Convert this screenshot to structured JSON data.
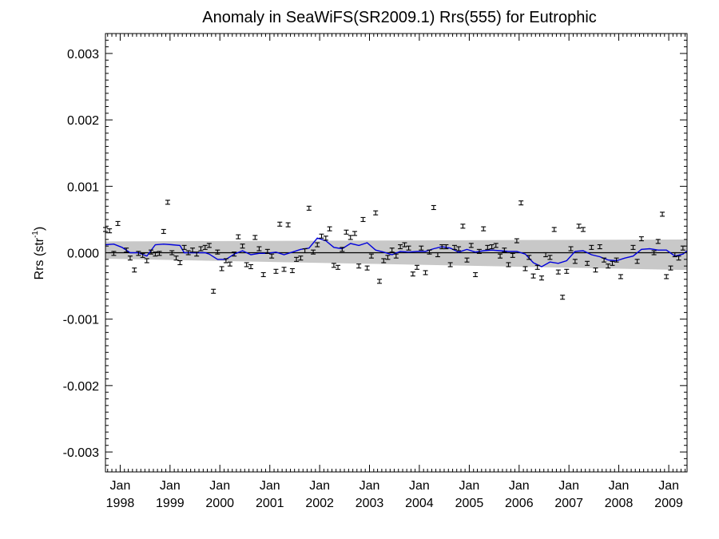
{
  "chart_data": {
    "type": "scatter",
    "title": "Anomaly in SeaWiFS(SR2009.1) Rrs(555) for Eutrophic",
    "ylabel": "Rrs (str",
    "ylabel_superscript": "-1",
    "ylabel_suffix": ")",
    "xlabel": "",
    "xlim": [
      "1997-09-15",
      "2009-05-15"
    ],
    "ylim": [
      -0.0033,
      0.0033
    ],
    "y_ticks": [
      {
        "value": -0.003,
        "label": "-0.003"
      },
      {
        "value": -0.002,
        "label": "-0.002"
      },
      {
        "value": -0.001,
        "label": "-0.001"
      },
      {
        "value": 0.0,
        "label": "0.000"
      },
      {
        "value": 0.001,
        "label": "0.001"
      },
      {
        "value": 0.002,
        "label": "0.002"
      },
      {
        "value": 0.003,
        "label": "0.003"
      }
    ],
    "x_ticks": [
      {
        "date": "1998-01-01",
        "label_top": "Jan",
        "label_bottom": "1998"
      },
      {
        "date": "1999-01-01",
        "label_top": "Jan",
        "label_bottom": "1999"
      },
      {
        "date": "2000-01-01",
        "label_top": "Jan",
        "label_bottom": "2000"
      },
      {
        "date": "2001-01-01",
        "label_top": "Jan",
        "label_bottom": "2001"
      },
      {
        "date": "2002-01-01",
        "label_top": "Jan",
        "label_bottom": "2002"
      },
      {
        "date": "2003-01-01",
        "label_top": "Jan",
        "label_bottom": "2003"
      },
      {
        "date": "2004-01-01",
        "label_top": "Jan",
        "label_bottom": "2004"
      },
      {
        "date": "2005-01-01",
        "label_top": "Jan",
        "label_bottom": "2005"
      },
      {
        "date": "2006-01-01",
        "label_top": "Jan",
        "label_bottom": "2006"
      },
      {
        "date": "2007-01-01",
        "label_top": "Jan",
        "label_bottom": "2007"
      },
      {
        "date": "2008-01-01",
        "label_top": "Jan",
        "label_bottom": "2008"
      },
      {
        "date": "2009-01-01",
        "label_top": "Jan",
        "label_bottom": "2009"
      }
    ],
    "zero_line": 0.0,
    "band": {
      "color": "#c8c8c8",
      "start": {
        "date": "1997-09-15",
        "upper": 0.00017,
        "lower": -9e-05
      },
      "end": {
        "date": "2009-05-15",
        "upper": 0.0002,
        "lower": -0.00026
      }
    },
    "series": [
      {
        "role": "monthly anomaly points",
        "color": "#000000",
        "marker": "error-bar",
        "points": [
          [
            "1997-09-15",
            0.00035
          ],
          [
            "1997-10-15",
            0.00033
          ],
          [
            "1997-11-15",
            -1e-05
          ],
          [
            "1997-12-15",
            0.00044
          ],
          [
            "1998-02-15",
            4e-05
          ],
          [
            "1998-03-15",
            -8e-05
          ],
          [
            "1998-04-15",
            -0.00026
          ],
          [
            "1998-05-15",
            -1e-05
          ],
          [
            "1998-06-15",
            -4e-05
          ],
          [
            "1998-07-15",
            -0.00012
          ],
          [
            "1998-08-15",
            1e-05
          ],
          [
            "1998-09-15",
            -2e-05
          ],
          [
            "1998-10-15",
            -1e-05
          ],
          [
            "1998-11-15",
            0.00032
          ],
          [
            "1998-12-15",
            0.00076
          ],
          [
            "1999-01-15",
            0.0
          ],
          [
            "1999-02-15",
            -8e-05
          ],
          [
            "1999-03-15",
            -0.00015
          ],
          [
            "1999-04-15",
            8e-05
          ],
          [
            "1999-05-15",
            0.0
          ],
          [
            "1999-06-15",
            4e-05
          ],
          [
            "1999-07-15",
            -2e-05
          ],
          [
            "1999-08-15",
            6e-05
          ],
          [
            "1999-09-15",
            8e-05
          ],
          [
            "1999-10-15",
            0.00011
          ],
          [
            "1999-11-15",
            -0.00058
          ],
          [
            "1999-12-15",
            1e-05
          ],
          [
            "2000-01-15",
            -0.00024
          ],
          [
            "2000-02-15",
            -0.00012
          ],
          [
            "2000-03-15",
            -0.00017
          ],
          [
            "2000-04-15",
            -2e-05
          ],
          [
            "2000-05-15",
            0.00024
          ],
          [
            "2000-06-15",
            0.0001
          ],
          [
            "2000-07-15",
            -0.00018
          ],
          [
            "2000-08-15",
            -0.00021
          ],
          [
            "2000-09-15",
            0.00023
          ],
          [
            "2000-10-15",
            6e-05
          ],
          [
            "2000-11-15",
            -0.00033
          ],
          [
            "2000-12-15",
            2e-05
          ],
          [
            "2001-01-15",
            -5e-05
          ],
          [
            "2001-02-15",
            -0.00028
          ],
          [
            "2001-03-15",
            0.00043
          ],
          [
            "2001-04-15",
            -0.00025
          ],
          [
            "2001-05-15",
            0.00042
          ],
          [
            "2001-06-15",
            -0.00027
          ],
          [
            "2001-07-15",
            -0.0001
          ],
          [
            "2001-08-15",
            -8e-05
          ],
          [
            "2001-09-15",
            3e-05
          ],
          [
            "2001-10-15",
            0.00067
          ],
          [
            "2001-11-15",
            1e-05
          ],
          [
            "2001-12-15",
            0.00012
          ],
          [
            "2002-01-15",
            0.00025
          ],
          [
            "2002-02-15",
            0.00022
          ],
          [
            "2002-03-15",
            0.00036
          ],
          [
            "2002-04-15",
            -0.00019
          ],
          [
            "2002-05-15",
            -0.00022
          ],
          [
            "2002-06-15",
            5e-05
          ],
          [
            "2002-07-15",
            0.00031
          ],
          [
            "2002-08-15",
            0.00023
          ],
          [
            "2002-09-15",
            0.00029
          ],
          [
            "2002-10-15",
            -0.0002
          ],
          [
            "2002-11-15",
            0.0005
          ],
          [
            "2002-12-15",
            -0.00023
          ],
          [
            "2003-01-15",
            -5e-05
          ],
          [
            "2003-02-15",
            0.0006
          ],
          [
            "2003-03-15",
            -0.00043
          ],
          [
            "2003-04-15",
            -0.00012
          ],
          [
            "2003-05-15",
            -7e-05
          ],
          [
            "2003-06-15",
            4e-05
          ],
          [
            "2003-07-15",
            -5e-05
          ],
          [
            "2003-08-15",
            9e-05
          ],
          [
            "2003-09-15",
            0.00012
          ],
          [
            "2003-10-15",
            7e-05
          ],
          [
            "2003-11-15",
            -0.00032
          ],
          [
            "2003-12-15",
            -0.00022
          ],
          [
            "2004-01-15",
            7e-05
          ],
          [
            "2004-02-15",
            -0.0003
          ],
          [
            "2004-03-15",
            1e-05
          ],
          [
            "2004-04-15",
            0.00068
          ],
          [
            "2004-05-15",
            -3e-05
          ],
          [
            "2004-06-15",
            9e-05
          ],
          [
            "2004-07-15",
            9e-05
          ],
          [
            "2004-08-15",
            -0.00018
          ],
          [
            "2004-09-15",
            8e-05
          ],
          [
            "2004-10-15",
            6e-05
          ],
          [
            "2004-11-15",
            0.0004
          ],
          [
            "2004-12-15",
            -0.00011
          ],
          [
            "2005-01-15",
            0.00011
          ],
          [
            "2005-02-15",
            -0.00033
          ],
          [
            "2005-03-15",
            2e-05
          ],
          [
            "2005-04-15",
            0.00036
          ],
          [
            "2005-05-15",
            8e-05
          ],
          [
            "2005-06-15",
            9e-05
          ],
          [
            "2005-07-15",
            0.00011
          ],
          [
            "2005-08-15",
            -5e-05
          ],
          [
            "2005-09-15",
            4e-05
          ],
          [
            "2005-10-15",
            -0.00018
          ],
          [
            "2005-11-15",
            -4e-05
          ],
          [
            "2005-12-15",
            0.00018
          ],
          [
            "2006-01-15",
            0.00075
          ],
          [
            "2006-02-15",
            -0.00024
          ],
          [
            "2006-03-15",
            -7e-05
          ],
          [
            "2006-04-15",
            -0.00035
          ],
          [
            "2006-05-15",
            -0.00022
          ],
          [
            "2006-06-15",
            -0.00038
          ],
          [
            "2006-07-15",
            -3e-05
          ],
          [
            "2006-08-15",
            -7e-05
          ],
          [
            "2006-09-15",
            0.00035
          ],
          [
            "2006-10-15",
            -0.00029
          ],
          [
            "2006-11-15",
            -0.00067
          ],
          [
            "2006-12-15",
            -0.00028
          ],
          [
            "2007-01-15",
            6e-05
          ],
          [
            "2007-02-15",
            -0.00013
          ],
          [
            "2007-03-15",
            0.0004
          ],
          [
            "2007-04-15",
            0.00035
          ],
          [
            "2007-05-15",
            -0.00016
          ],
          [
            "2007-06-15",
            8e-05
          ],
          [
            "2007-07-15",
            -0.00026
          ],
          [
            "2007-08-15",
            9e-05
          ],
          [
            "2007-09-15",
            -0.00011
          ],
          [
            "2007-10-15",
            -0.0002
          ],
          [
            "2007-11-15",
            -0.00016
          ],
          [
            "2007-12-15",
            -0.00011
          ],
          [
            "2008-01-15",
            -0.00036
          ],
          [
            "2008-04-15",
            8e-05
          ],
          [
            "2008-05-15",
            -0.00013
          ],
          [
            "2008-06-15",
            0.00021
          ],
          [
            "2008-09-15",
            0.0
          ],
          [
            "2008-10-15",
            0.00017
          ],
          [
            "2008-11-15",
            0.00058
          ],
          [
            "2008-12-15",
            -0.00036
          ],
          [
            "2009-01-15",
            -0.00023
          ],
          [
            "2009-02-15",
            -3e-05
          ],
          [
            "2009-03-15",
            -8e-05
          ],
          [
            "2009-04-15",
            7e-05
          ]
        ]
      },
      {
        "role": "running mean",
        "color": "#0000dd",
        "marker": "line",
        "points": [
          [
            "1997-09-15",
            0.00012
          ],
          [
            "1997-11-15",
            0.00013
          ],
          [
            "1998-01-15",
            8e-05
          ],
          [
            "1998-03-15",
            0.0
          ],
          [
            "1998-05-15",
            0.0
          ],
          [
            "1998-07-15",
            -5e-05
          ],
          [
            "1998-09-15",
            0.00012
          ],
          [
            "1998-11-15",
            0.00013
          ],
          [
            "1999-01-15",
            0.00012
          ],
          [
            "1999-03-15",
            0.00011
          ],
          [
            "1999-04-15",
            0.0
          ],
          [
            "1999-07-15",
            0.0
          ],
          [
            "1999-09-15",
            0.0
          ],
          [
            "1999-10-15",
            -2e-05
          ],
          [
            "1999-12-15",
            -0.0001
          ],
          [
            "2000-02-15",
            -0.0001
          ],
          [
            "2000-04-15",
            -2e-05
          ],
          [
            "2000-06-15",
            3e-05
          ],
          [
            "2000-08-15",
            -3e-05
          ],
          [
            "2000-10-15",
            -1e-05
          ],
          [
            "2000-12-15",
            -1e-05
          ],
          [
            "2001-02-15",
            1e-05
          ],
          [
            "2001-04-15",
            -3e-05
          ],
          [
            "2001-06-15",
            1e-05
          ],
          [
            "2001-08-15",
            5e-05
          ],
          [
            "2001-10-15",
            7e-05
          ],
          [
            "2001-12-15",
            0.00022
          ],
          [
            "2002-02-15",
            0.00018
          ],
          [
            "2002-04-15",
            8e-05
          ],
          [
            "2002-06-15",
            6e-05
          ],
          [
            "2002-08-15",
            0.00014
          ],
          [
            "2002-10-15",
            0.00011
          ],
          [
            "2002-12-15",
            0.00015
          ],
          [
            "2003-02-15",
            4e-05
          ],
          [
            "2003-04-15",
            1e-05
          ],
          [
            "2003-06-15",
            -3e-05
          ],
          [
            "2003-08-15",
            2e-05
          ],
          [
            "2003-10-15",
            1e-05
          ],
          [
            "2003-12-15",
            2e-05
          ],
          [
            "2004-02-15",
            2e-05
          ],
          [
            "2004-04-15",
            6e-05
          ],
          [
            "2004-06-15",
            9e-05
          ],
          [
            "2004-08-15",
            7e-05
          ],
          [
            "2004-10-15",
            1e-05
          ],
          [
            "2004-12-15",
            5e-05
          ],
          [
            "2005-02-15",
            1e-05
          ],
          [
            "2005-04-15",
            3e-05
          ],
          [
            "2005-06-15",
            4e-05
          ],
          [
            "2005-08-15",
            3e-05
          ],
          [
            "2005-10-15",
            2e-05
          ],
          [
            "2005-12-15",
            2e-05
          ],
          [
            "2006-02-15",
            -2e-05
          ],
          [
            "2006-04-15",
            -0.00015
          ],
          [
            "2006-06-15",
            -0.00021
          ],
          [
            "2006-08-15",
            -0.00014
          ],
          [
            "2006-10-15",
            -0.00016
          ],
          [
            "2006-12-15",
            -0.00012
          ],
          [
            "2007-02-15",
            2e-05
          ],
          [
            "2007-04-15",
            3e-05
          ],
          [
            "2007-06-15",
            -3e-05
          ],
          [
            "2007-08-15",
            -6e-05
          ],
          [
            "2007-10-15",
            -0.00011
          ],
          [
            "2007-12-15",
            -0.00012
          ],
          [
            "2008-02-15",
            -8e-05
          ],
          [
            "2008-04-15",
            -5e-05
          ],
          [
            "2008-06-15",
            5e-05
          ],
          [
            "2008-08-15",
            6e-05
          ],
          [
            "2008-10-15",
            4e-05
          ],
          [
            "2008-12-15",
            4e-05
          ],
          [
            "2009-02-15",
            -5e-05
          ],
          [
            "2009-04-15",
            -2e-05
          ],
          [
            "2009-05-15",
            3e-05
          ]
        ]
      }
    ]
  }
}
